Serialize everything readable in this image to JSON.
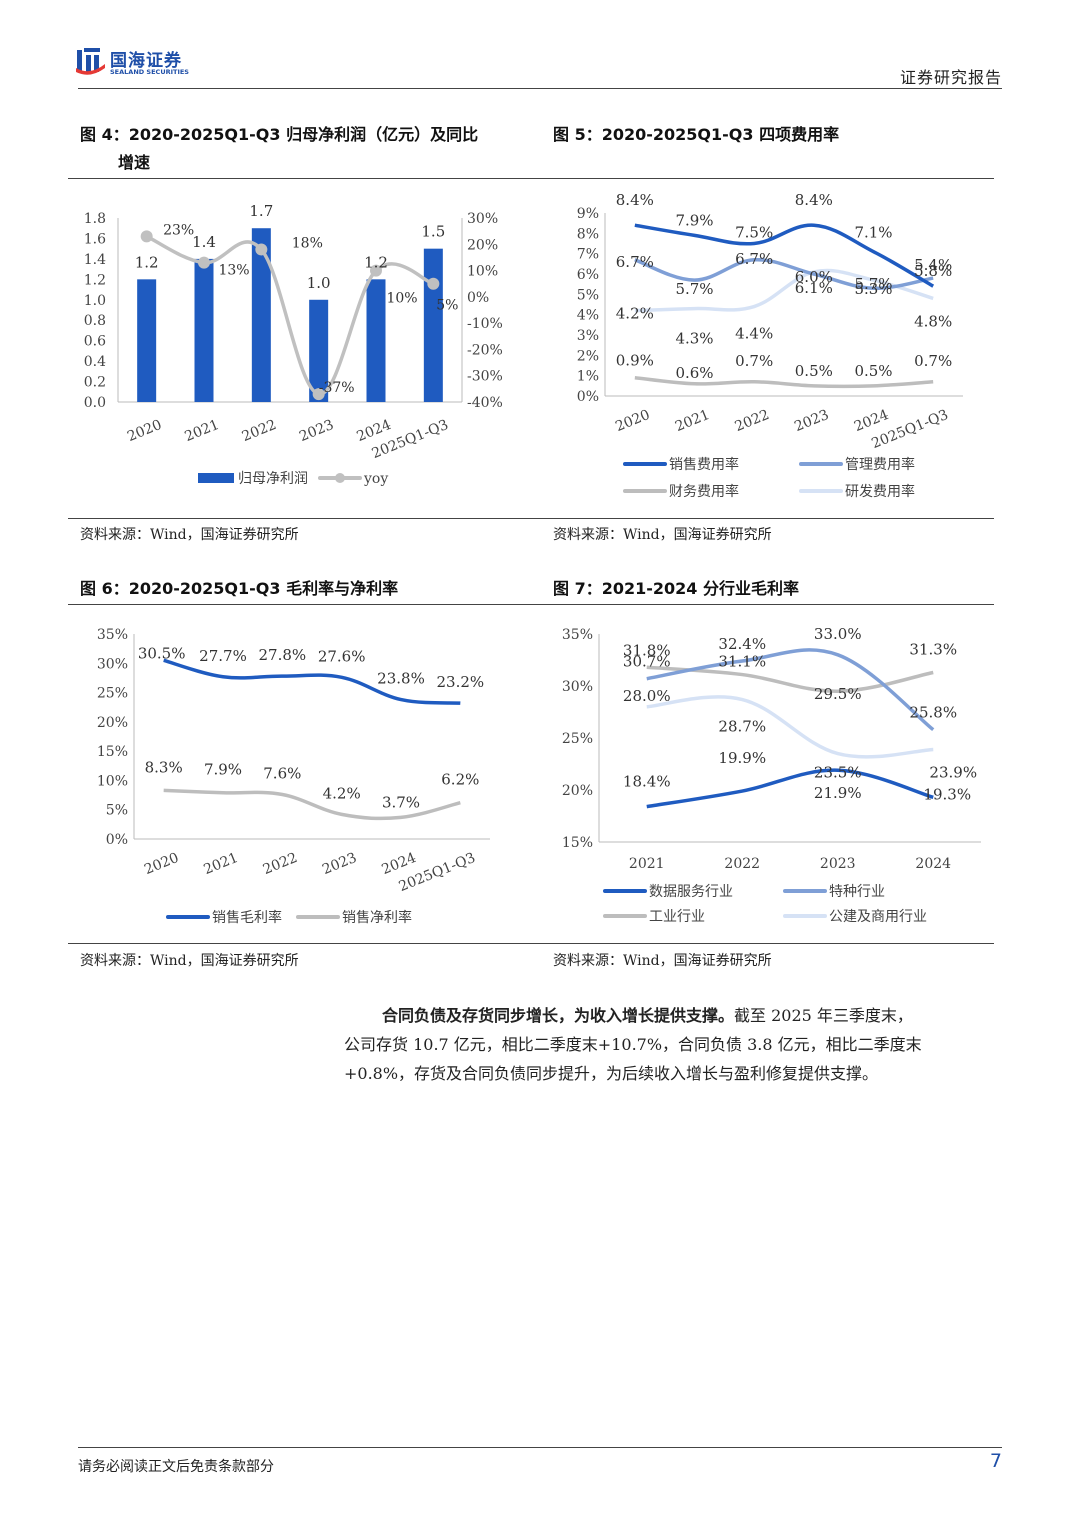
{
  "header": {
    "brand_name": "国海证券",
    "brand_en": "SEALAND SECURITIES",
    "doc_type": "证券研究报告"
  },
  "colors": {
    "dark_blue": "#1f5bc0",
    "mid_blue": "#7f9fd6",
    "gray": "#bdbdbd",
    "light_blue": "#d6e2f5",
    "brand_blue": "#1f4fa8"
  },
  "figures": [
    {
      "title_line1": "图 4：2020-2025Q1-Q3 归母净利润（亿元）及同比",
      "title_line2": "增速",
      "source": "资料来源：Wind，国海证券研究所"
    },
    {
      "title_line1": "图 5：2020-2025Q1-Q3 四项费用率",
      "title_line2": "",
      "source": "资料来源：Wind，国海证券研究所"
    },
    {
      "title_line1": "图 6：2020-2025Q1-Q3 毛利率与净利率",
      "title_line2": "",
      "source": "资料来源：Wind，国海证券研究所"
    },
    {
      "title_line1": "图 7：2021-2024 分行业毛利率",
      "title_line2": "",
      "source": "资料来源：Wind，国海证券研究所"
    }
  ],
  "chart_data": [
    {
      "type": "bar",
      "categories": [
        "2020",
        "2021",
        "2022",
        "2023",
        "2024",
        "2025Q1-Q3"
      ],
      "series": [
        {
          "name": "归母净利润",
          "values": [
            1.2,
            1.4,
            1.7,
            1.0,
            1.2,
            1.5
          ],
          "labels": [
            "1.2",
            "1.4",
            "1.7",
            "1.0",
            "1.2",
            "1.5"
          ],
          "color": "#1f5bc0"
        },
        {
          "name": "yoy",
          "kind": "line",
          "values": [
            23,
            13,
            18,
            -37,
            10,
            5
          ],
          "labels": [
            "23%",
            "13%",
            "18%",
            "-37%",
            "10%",
            "5%"
          ],
          "color": "#c0c0c0"
        }
      ],
      "y_ticks": [
        "1.8",
        "1.6",
        "1.4",
        "1.2",
        "1.0",
        "0.8",
        "0.6",
        "0.4",
        "0.2",
        "0.0"
      ],
      "y2_ticks": [
        "30%",
        "20%",
        "10%",
        "0%",
        "-10%",
        "-20%",
        "-30%",
        "-40%"
      ],
      "ylim": [
        0,
        1.8
      ],
      "y2lim": [
        -40,
        30
      ]
    },
    {
      "type": "line",
      "categories": [
        "2020",
        "2021",
        "2022",
        "2023",
        "2024",
        "2025Q1-Q3"
      ],
      "series": [
        {
          "name": "销售费用率",
          "values": [
            8.4,
            7.9,
            7.5,
            8.4,
            7.1,
            5.4
          ],
          "labels": [
            "8.4%",
            "7.9%",
            "7.5%",
            "8.4%",
            "7.1%",
            "5.4%"
          ],
          "color": "#1f5bc0"
        },
        {
          "name": "管理费用率",
          "values": [
            6.7,
            5.7,
            6.7,
            6.0,
            5.3,
            5.8
          ],
          "labels": [
            "6.7%",
            "5.7%",
            "6.7%",
            "6.0%",
            "5.3%",
            "5.8%"
          ],
          "color": "#7f9fd6"
        },
        {
          "name": "财务费用率",
          "values": [
            0.9,
            0.6,
            0.7,
            0.5,
            0.5,
            0.7
          ],
          "labels": [
            "0.9%",
            "0.6%",
            "0.7%",
            "0.5%",
            "0.5%",
            "0.7%"
          ],
          "color": "#bdbdbd"
        },
        {
          "name": "研发费用率",
          "values": [
            4.2,
            4.3,
            4.4,
            6.1,
            5.7,
            4.8
          ],
          "labels": [
            "4.2%",
            "4.3%",
            "4.4%",
            "6.1%",
            "5.7%",
            "4.8%"
          ],
          "color": "#d6e2f5"
        }
      ],
      "y_ticks": [
        "9%",
        "8%",
        "7%",
        "6%",
        "5%",
        "4%",
        "3%",
        "2%",
        "1%",
        "0%"
      ],
      "ylim": [
        0,
        9
      ]
    },
    {
      "type": "line",
      "categories": [
        "2020",
        "2021",
        "2022",
        "2023",
        "2024",
        "2025Q1-Q3"
      ],
      "series": [
        {
          "name": "销售毛利率",
          "values": [
            30.5,
            27.7,
            27.8,
            27.6,
            23.8,
            23.2
          ],
          "labels": [
            "30.5%",
            "27.7%",
            "27.8%",
            "27.6%",
            "23.8%",
            "23.2%"
          ],
          "color": "#1f5bc0"
        },
        {
          "name": "销售净利率",
          "values": [
            8.3,
            7.9,
            7.6,
            4.2,
            3.7,
            6.2
          ],
          "labels": [
            "8.3%",
            "7.9%",
            "7.6%",
            "4.2%",
            "3.7%",
            "6.2%"
          ],
          "color": "#bdbdbd"
        }
      ],
      "y_ticks": [
        "35%",
        "30%",
        "25%",
        "20%",
        "15%",
        "10%",
        "5%",
        "0%"
      ],
      "ylim": [
        0,
        35
      ]
    },
    {
      "type": "line",
      "categories": [
        "2021",
        "2022",
        "2023",
        "2024"
      ],
      "series": [
        {
          "name": "数据服务行业",
          "values": [
            18.4,
            19.9,
            21.9,
            19.3
          ],
          "labels": [
            "18.4%",
            "19.9%",
            "21.9%",
            "19.3%"
          ],
          "color": "#1f5bc0"
        },
        {
          "name": "特种行业",
          "values": [
            30.7,
            32.4,
            33.0,
            25.8
          ],
          "labels": [
            "30.7%",
            "32.4%",
            "33.0%",
            "25.8%"
          ],
          "color": "#7f9fd6"
        },
        {
          "name": "工业行业",
          "values": [
            31.8,
            31.1,
            29.5,
            31.3
          ],
          "labels": [
            "31.8%",
            "31.1%",
            "29.5%",
            "31.3%"
          ],
          "color": "#bdbdbd"
        },
        {
          "name": "公建及商用行业",
          "values": [
            28.0,
            28.7,
            23.5,
            23.9
          ],
          "labels": [
            "28.0%",
            "28.7%",
            "23.5%",
            "23.9%"
          ],
          "color": "#d6e2f5"
        }
      ],
      "y_ticks": [
        "35%",
        "30%",
        "25%",
        "20%",
        "15%"
      ],
      "ylim": [
        15,
        35
      ]
    }
  ],
  "body": {
    "bold_lead": "合同负债及存货同步增长，为收入增长提供支撑。",
    "text_line1": "截至 2025 年三季度末，",
    "text_line2": "公司存货 10.7 亿元，相比二季度末+10.7%，合同负债 3.8 亿元，相比二季度末",
    "text_line3": "+0.8%，存货及合同负债同步提升，为后续收入增长与盈利修复提供支撑。"
  },
  "footer": {
    "disclaimer": "请务必阅读正文后免责条款部分",
    "page_number": "7"
  }
}
